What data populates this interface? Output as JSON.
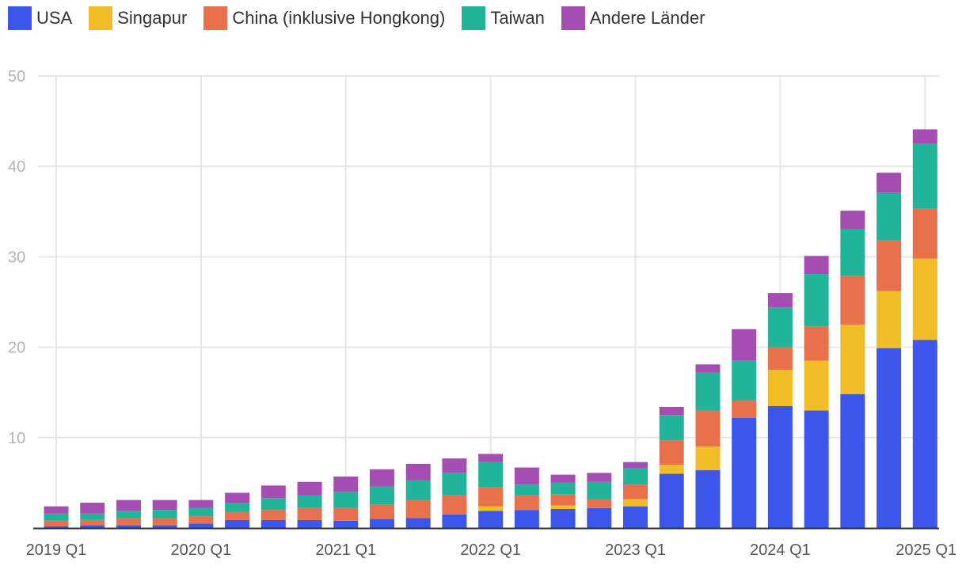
{
  "chart_data": {
    "type": "bar",
    "stacked": true,
    "title": "",
    "xlabel": "",
    "ylabel": "",
    "ylim": [
      0,
      50
    ],
    "yticks": [
      10,
      20,
      30,
      40,
      50
    ],
    "grid": true,
    "legend_position": "top-left",
    "categories": [
      "2019 Q1",
      "2019 Q2",
      "2019 Q3",
      "2019 Q4",
      "2020 Q1",
      "2020 Q2",
      "2020 Q3",
      "2020 Q4",
      "2021 Q1",
      "2021 Q2",
      "2021 Q3",
      "2021 Q4",
      "2022 Q1",
      "2022 Q2",
      "2022 Q3",
      "2022 Q4",
      "2023 Q1",
      "2023 Q2",
      "2023 Q3",
      "2023 Q4",
      "2024 Q1",
      "2024 Q2",
      "2024 Q3",
      "2024 Q4",
      "2025 Q1"
    ],
    "x_tick_labels": [
      "2019 Q1",
      "2020 Q1",
      "2021 Q1",
      "2022 Q1",
      "2023 Q1",
      "2024 Q1",
      "2025 Q1"
    ],
    "series": [
      {
        "name": "USA",
        "color": "#3c55ea",
        "values": [
          0.2,
          0.3,
          0.3,
          0.3,
          0.5,
          0.9,
          0.9,
          0.9,
          0.8,
          1.0,
          1.1,
          1.5,
          1.9,
          2.0,
          2.1,
          2.2,
          2.4,
          6.0,
          6.4,
          12.2,
          13.5,
          13.0,
          14.8,
          19.9,
          20.8
        ]
      },
      {
        "name": "Singapur",
        "color": "#f0bd27",
        "values": [
          0,
          0,
          0,
          0,
          0,
          0,
          0,
          0,
          0,
          0,
          0,
          0,
          0.5,
          0,
          0.4,
          0,
          0.8,
          1.0,
          2.6,
          0,
          4.0,
          5.5,
          7.7,
          6.3,
          9.0
        ]
      },
      {
        "name": "China (inklusive Hongkong)",
        "color": "#e8704a",
        "values": [
          0.6,
          0.6,
          0.8,
          0.8,
          0.8,
          0.9,
          1.1,
          1.3,
          1.4,
          1.6,
          2.0,
          2.1,
          2.1,
          1.6,
          1.2,
          1.0,
          1.6,
          2.7,
          4.0,
          1.9,
          2.5,
          3.8,
          5.4,
          5.6,
          5.5
        ]
      },
      {
        "name": "Taiwan",
        "color": "#22b39b",
        "values": [
          0.8,
          0.7,
          0.8,
          0.9,
          0.9,
          1.0,
          1.3,
          1.4,
          1.8,
          2.0,
          2.2,
          2.5,
          2.8,
          1.2,
          1.3,
          1.9,
          1.8,
          2.8,
          4.2,
          4.4,
          4.4,
          5.8,
          5.2,
          5.3,
          7.2
        ]
      },
      {
        "name": "Andere Länder",
        "color": "#a64db4",
        "values": [
          0.8,
          1.2,
          1.2,
          1.1,
          0.9,
          1.1,
          1.4,
          1.5,
          1.7,
          1.9,
          1.8,
          1.6,
          0.9,
          1.9,
          0.9,
          1.0,
          0.7,
          0.9,
          0.9,
          3.5,
          1.6,
          2.0,
          2.0,
          2.2,
          1.6
        ]
      }
    ]
  }
}
